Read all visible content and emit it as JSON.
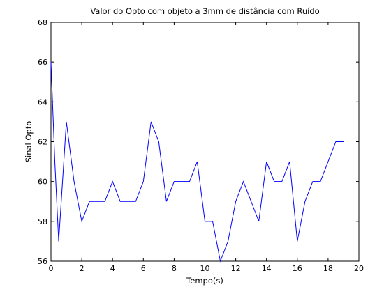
{
  "chart_data": {
    "type": "line",
    "title": "Valor do Opto com objeto a 3mm de distância com Ruído",
    "xlabel": "Tempo(s)",
    "ylabel": "Sinal Opto",
    "xlim": [
      0,
      20
    ],
    "ylim": [
      56,
      68
    ],
    "xticks": [
      "0",
      "2",
      "4",
      "6",
      "8",
      "10",
      "12",
      "14",
      "16",
      "18",
      "20"
    ],
    "yticks": [
      "56",
      "58",
      "60",
      "62",
      "64",
      "66",
      "68"
    ],
    "grid": false,
    "line_color": "#0000ff",
    "series": [
      {
        "x": [
          0,
          0.25,
          0.5,
          1.0,
          1.5,
          2.0,
          2.5,
          3.0,
          3.5,
          4.0,
          4.5,
          5.0,
          5.5,
          6.0,
          6.5,
          7.0,
          7.5,
          8.0,
          8.5,
          9.0,
          9.5,
          10.0,
          10.5,
          11.0,
          11.5,
          12.0,
          12.5,
          13.0,
          13.5,
          14.0,
          14.5,
          15.0,
          15.5,
          16.0,
          16.5,
          17.0,
          17.5,
          18.0,
          18.5,
          19.0
        ],
        "y": [
          66,
          61,
          57,
          63,
          60,
          58,
          59,
          59,
          59,
          60,
          59,
          59,
          59,
          60,
          63,
          62,
          59,
          60,
          60,
          60,
          61,
          58,
          58,
          56,
          57,
          59,
          60,
          59,
          58,
          61,
          60,
          60,
          61,
          57,
          59,
          60,
          60,
          61,
          62,
          62
        ]
      }
    ]
  }
}
